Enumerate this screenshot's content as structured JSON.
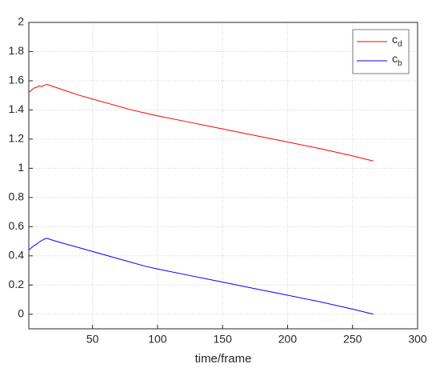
{
  "chart_data": {
    "type": "line",
    "x": [
      1,
      3,
      5,
      7,
      9,
      11,
      13,
      15,
      20,
      30,
      40,
      50,
      60,
      70,
      80,
      90,
      100,
      125,
      150,
      175,
      200,
      225,
      250,
      266
    ],
    "series": [
      {
        "name": "cd",
        "color": "#ff0000",
        "values": [
          1.52,
          1.535,
          1.55,
          1.555,
          1.565,
          1.56,
          1.57,
          1.575,
          1.56,
          1.53,
          1.5,
          1.475,
          1.45,
          1.425,
          1.4,
          1.38,
          1.36,
          1.315,
          1.27,
          1.225,
          1.18,
          1.135,
          1.085,
          1.05
        ]
      },
      {
        "name": "cb",
        "color": "#0000ff",
        "values": [
          0.44,
          0.455,
          0.47,
          0.48,
          0.495,
          0.505,
          0.515,
          0.52,
          0.505,
          0.48,
          0.455,
          0.43,
          0.405,
          0.38,
          0.355,
          0.33,
          0.31,
          0.265,
          0.22,
          0.175,
          0.13,
          0.085,
          0.035,
          0.0
        ]
      }
    ],
    "xlabel": "time/frame",
    "xlim": [
      1,
      300
    ],
    "xticks": [
      50,
      100,
      150,
      200,
      250,
      300
    ],
    "ylim": [
      -0.1,
      2
    ],
    "yticks": [
      0,
      0.2,
      0.4,
      0.6,
      0.8,
      1,
      1.2,
      1.4,
      1.6,
      1.8,
      2
    ],
    "grid": true,
    "legend": "top-right"
  }
}
